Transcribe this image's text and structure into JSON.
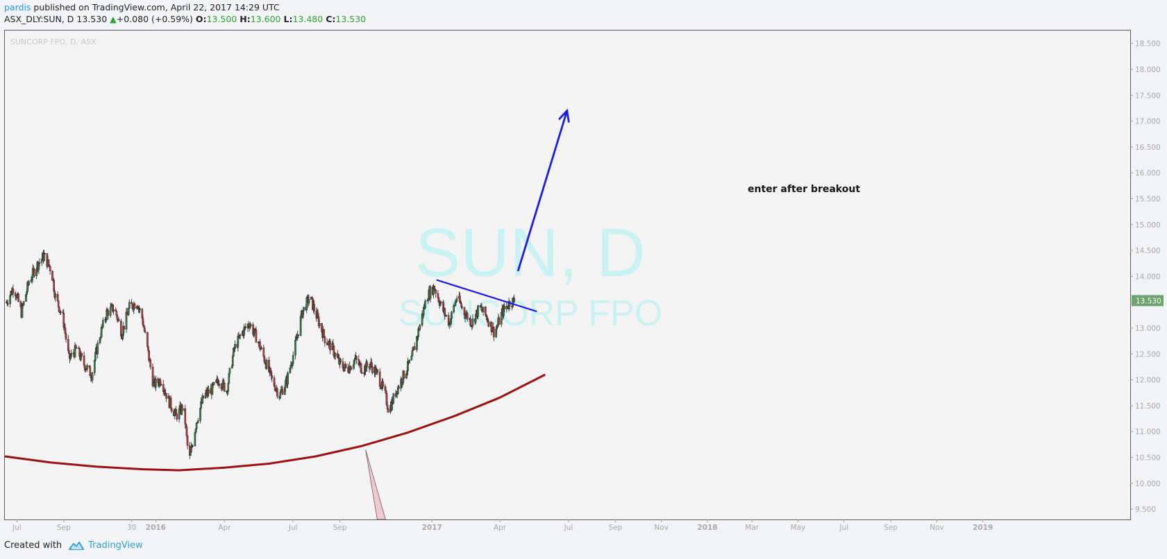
{
  "header": {
    "author": "pardis",
    "published_text": " published on TradingView.com, April 22, 2017 14:29 UTC",
    "symbol": "ASX_DLY:SUN, D",
    "last": "13.530",
    "change_arrow": "▲",
    "change": "+0.080 (+0.59%)",
    "o_label": "O:",
    "o_value": "13.500",
    "h_label": "H:",
    "h_value": "13.600",
    "l_label": "L:",
    "l_value": "13.480",
    "c_label": "C:",
    "c_value": "13.530"
  },
  "chart_legend": "SUNCORP FPO, D, ASX",
  "watermark": {
    "ticker": "SUN, D",
    "name": "SUNCORP FPO"
  },
  "annotation_text": "enter after breakout",
  "footer": {
    "created_with": "Created with",
    "brand": "TradingView"
  },
  "colors": {
    "up": "#3a7a4a",
    "down": "#b53a3a",
    "price_tag": "#6ea26e",
    "resistance": "#1a1aee",
    "arc": "#9c1010",
    "watermark": "#c9f2f2",
    "brand": "#2f9ed9"
  },
  "chart_data": {
    "type": "candlestick",
    "title": "SUNCORP FPO, D, ASX",
    "y_ticks": [
      "18.500",
      "18.000",
      "17.500",
      "17.000",
      "16.500",
      "16.000",
      "15.500",
      "15.000",
      "14.500",
      "14.000",
      "13.500",
      "13.000",
      "12.500",
      "12.000",
      "11.500",
      "11.000",
      "10.500",
      "10.000",
      "9.500"
    ],
    "x_ticks": [
      "Jul",
      "Sep",
      "30",
      "2016",
      "Apr",
      "Jul",
      "Sep",
      "2017",
      "Apr",
      "Jul",
      "Sep",
      "Nov",
      "2018",
      "Mar",
      "May",
      "Jul",
      "Sep",
      "Nov",
      "2019"
    ],
    "ylim": [
      9.3,
      18.75
    ],
    "last_price": "13.530",
    "price_path": [
      [
        "2015-06-17",
        13.5
      ],
      [
        "2015-06-27",
        13.8
      ],
      [
        "2015-07-07",
        13.3
      ],
      [
        "2015-07-17",
        13.9
      ],
      [
        "2015-07-27",
        14.2
      ],
      [
        "2015-08-06",
        14.4
      ],
      [
        "2015-08-16",
        14.1
      ],
      [
        "2015-08-21",
        13.6
      ],
      [
        "2015-08-31",
        13.2
      ],
      [
        "2015-09-08",
        12.4
      ],
      [
        "2015-09-18",
        12.6
      ],
      [
        "2015-09-28",
        12.3
      ],
      [
        "2015-10-08",
        12.1
      ],
      [
        "2015-10-18",
        12.8
      ],
      [
        "2015-10-28",
        13.3
      ],
      [
        "2015-11-07",
        13.4
      ],
      [
        "2015-11-17",
        12.9
      ],
      [
        "2015-11-27",
        13.4
      ],
      [
        "2015-12-07",
        13.5
      ],
      [
        "2015-12-14",
        13.2
      ],
      [
        "2015-12-29",
        11.9
      ],
      [
        "2016-01-08",
        12.0
      ],
      [
        "2016-01-18",
        11.6
      ],
      [
        "2016-01-28",
        11.3
      ],
      [
        "2016-02-07",
        11.5
      ],
      [
        "2016-02-14",
        10.4
      ],
      [
        "2016-02-24",
        11.2
      ],
      [
        "2016-03-05",
        11.7
      ],
      [
        "2016-03-15",
        11.8
      ],
      [
        "2016-03-25",
        12.0
      ],
      [
        "2016-04-04",
        11.8
      ],
      [
        "2016-04-14",
        12.6
      ],
      [
        "2016-04-24",
        12.9
      ],
      [
        "2016-05-04",
        13.1
      ],
      [
        "2016-05-14",
        12.8
      ],
      [
        "2016-05-24",
        12.4
      ],
      [
        "2016-06-03",
        12.0
      ],
      [
        "2016-06-13",
        11.7
      ],
      [
        "2016-06-23",
        12.0
      ],
      [
        "2016-07-03",
        12.6
      ],
      [
        "2016-07-13",
        13.3
      ],
      [
        "2016-07-23",
        13.6
      ],
      [
        "2016-08-02",
        13.2
      ],
      [
        "2016-08-12",
        12.8
      ],
      [
        "2016-08-22",
        12.6
      ],
      [
        "2016-09-01",
        12.3
      ],
      [
        "2016-09-11",
        12.2
      ],
      [
        "2016-09-21",
        12.4
      ],
      [
        "2016-10-01",
        12.2
      ],
      [
        "2016-10-11",
        12.3
      ],
      [
        "2016-10-21",
        12.1
      ],
      [
        "2016-10-31",
        11.7
      ],
      [
        "2016-11-05",
        11.4
      ],
      [
        "2016-11-15",
        11.8
      ],
      [
        "2016-11-25",
        12.1
      ],
      [
        "2016-12-05",
        12.4
      ],
      [
        "2016-12-15",
        13.0
      ],
      [
        "2016-12-25",
        13.6
      ],
      [
        "2017-01-04",
        13.8
      ],
      [
        "2017-01-14",
        13.4
      ],
      [
        "2017-01-24",
        13.1
      ],
      [
        "2017-02-03",
        13.6
      ],
      [
        "2017-02-13",
        13.3
      ],
      [
        "2017-02-23",
        13.1
      ],
      [
        "2017-03-05",
        13.4
      ],
      [
        "2017-03-15",
        13.2
      ],
      [
        "2017-03-25",
        12.9
      ],
      [
        "2017-04-04",
        13.3
      ],
      [
        "2017-04-14",
        13.5
      ],
      [
        "2017-04-21",
        13.53
      ]
    ],
    "resistance_line": [
      [
        "2017-01-07",
        13.93
      ],
      [
        "2017-05-20",
        13.32
      ]
    ],
    "target_arrow": [
      [
        "2017-04-25",
        14.1
      ],
      [
        "2017-06-29",
        17.2
      ]
    ],
    "support_arc": [
      [
        "2015-06-15",
        10.52
      ],
      [
        "2015-08-15",
        10.4
      ],
      [
        "2015-10-15",
        10.32
      ],
      [
        "2015-12-15",
        10.27
      ],
      [
        "2016-01-31",
        10.25
      ],
      [
        "2016-03-31",
        10.3
      ],
      [
        "2016-05-31",
        10.38
      ],
      [
        "2016-07-31",
        10.52
      ],
      [
        "2016-09-30",
        10.72
      ],
      [
        "2016-11-30",
        10.98
      ],
      [
        "2017-01-31",
        11.3
      ],
      [
        "2017-03-31",
        11.65
      ],
      [
        "2017-05-31",
        12.1
      ]
    ],
    "callout": [
      [
        "2016-10-05",
        10.65
      ],
      [
        "2016-10-26",
        9.3
      ]
    ]
  }
}
